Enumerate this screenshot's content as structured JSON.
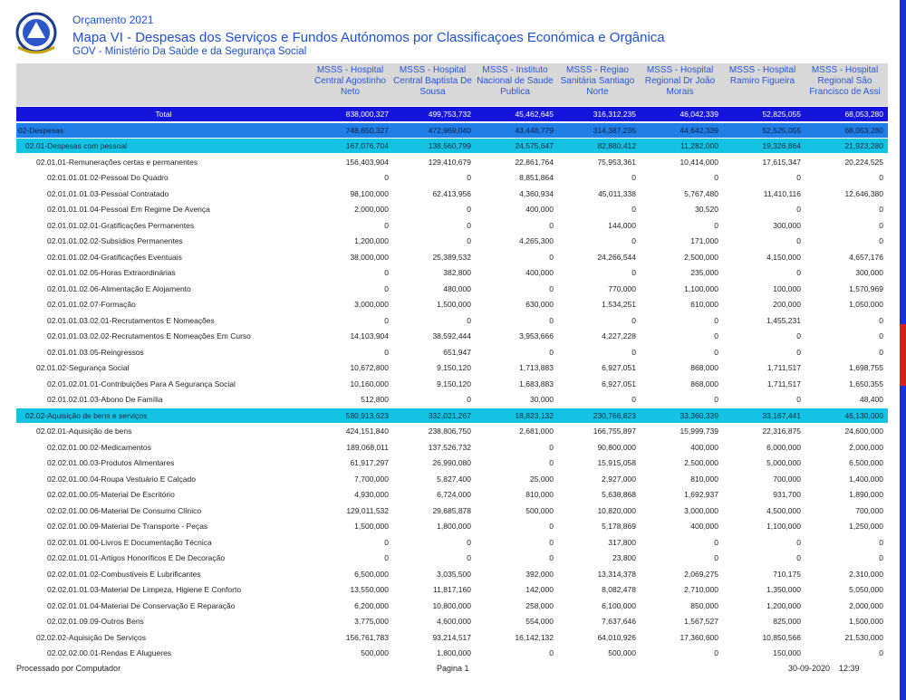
{
  "header": {
    "year": "Orçamento 2021",
    "title": "Mapa VI - Despesas dos Serviços e Fundos Autónomos por Classificaçoes Económica e Orgânica",
    "subtitle": "GOV - Ministério Da Saúde e da Segurança Social"
  },
  "table": {
    "columns": [
      "MSSS - Hospital Central Agostinho Neto",
      "MSSS - Hospital Central Baptista De Sousa",
      "MSSS - Instituto Nacional de Saude Publica",
      "MSSS - Regiao Sanitária Santiago Norte",
      "MSSS - Hospital Regional Dr João Morais",
      "MSSS - Hospital Ramiro Figueira",
      "MSSS - Hospital Regional São Francisco de Assi"
    ],
    "rows": [
      {
        "level": 0,
        "label": "Total",
        "values": [
          "838,000,327",
          "499,753,732",
          "45,462,645",
          "316,312,235",
          "46,042,339",
          "52,825,055",
          "68,053,280"
        ]
      },
      {
        "level": 1,
        "label": "02-Despesas",
        "values": [
          "748,650,327",
          "472,969,040",
          "43,448,779",
          "314,387,235",
          "44,642,339",
          "52,525,055",
          "68,053,280"
        ]
      },
      {
        "level": 2,
        "label": "02.01-Despesas com pessoal",
        "values": [
          "167,076,704",
          "138,560,799",
          "24,575,647",
          "82,880,412",
          "11,282,000",
          "19,326,864",
          "21,923,280"
        ]
      },
      {
        "level": 3,
        "label": "02.01.01-Remunerações certas e permanentes",
        "values": [
          "156,403,904",
          "129,410,679",
          "22,861,764",
          "75,953,361",
          "10,414,000",
          "17,615,347",
          "20,224,525"
        ]
      },
      {
        "level": 4,
        "label": "02.01.01.01.02-Pessoal Do Quadro",
        "values": [
          "0",
          "0",
          "8,851,864",
          "0",
          "0",
          "0",
          "0"
        ]
      },
      {
        "level": 4,
        "label": "02.01.01.01.03-Pessoal Contratado",
        "values": [
          "98,100,000",
          "62,413,956",
          "4,360,934",
          "45,011,338",
          "5,767,480",
          "11,410,116",
          "12,646,380"
        ]
      },
      {
        "level": 4,
        "label": "02.01.01.01.04-Pessoal Em Regime De Avença",
        "values": [
          "2,000,000",
          "0",
          "400,000",
          "0",
          "30,520",
          "0",
          "0"
        ]
      },
      {
        "level": 4,
        "label": "02.01.01.02.01-Gratificações Permanentes",
        "values": [
          "0",
          "0",
          "0",
          "144,000",
          "0",
          "300,000",
          "0"
        ]
      },
      {
        "level": 4,
        "label": "02.01.01.02.02-Subsídios Permanentes",
        "values": [
          "1,200,000",
          "0",
          "4,265,300",
          "0",
          "171,000",
          "0",
          "0"
        ]
      },
      {
        "level": 4,
        "label": "02.01.01.02.04-Gratificações Eventuais",
        "values": [
          "38,000,000",
          "25,389,532",
          "0",
          "24,266,544",
          "2,500,000",
          "4,150,000",
          "4,657,176"
        ]
      },
      {
        "level": 4,
        "label": "02.01.01.02.05-Horas Extraordinárias",
        "values": [
          "0",
          "382,800",
          "400,000",
          "0",
          "235,000",
          "0",
          "300,000"
        ]
      },
      {
        "level": 4,
        "label": "02.01.01.02.06-Alimentação E Alojamento",
        "values": [
          "0",
          "480,000",
          "0",
          "770,000",
          "1,100,000",
          "100,000",
          "1,570,969"
        ]
      },
      {
        "level": 4,
        "label": "02.01.01.02.07-Formação",
        "values": [
          "3,000,000",
          "1,500,000",
          "630,000",
          "1,534,251",
          "610,000",
          "200,000",
          "1,050,000"
        ]
      },
      {
        "level": 4,
        "label": "02.01.01.03.02.01-Recrutamentos E Nomeações",
        "values": [
          "0",
          "0",
          "0",
          "0",
          "0",
          "1,455,231",
          "0"
        ]
      },
      {
        "level": 4,
        "label": "02.01.01.03.02.02-Recrutamentos E Nomeações Em Curso",
        "values": [
          "14,103,904",
          "38,592,444",
          "3,953,666",
          "4,227,228",
          "0",
          "0",
          "0"
        ]
      },
      {
        "level": 4,
        "label": "02.01.01.03.05-Reingressos",
        "values": [
          "0",
          "651,947",
          "0",
          "0",
          "0",
          "0",
          "0"
        ]
      },
      {
        "level": 3,
        "label": "02.01.02-Segurança Social",
        "values": [
          "10,672,800",
          "9,150,120",
          "1,713,883",
          "6,927,051",
          "868,000",
          "1,711,517",
          "1,698,755"
        ]
      },
      {
        "level": 4,
        "label": "02.01.02.01.01-Contribuições Para A Segurança Social",
        "values": [
          "10,160,000",
          "9,150,120",
          "1,683,883",
          "6,927,051",
          "868,000",
          "1,711,517",
          "1,650,355"
        ]
      },
      {
        "level": 4,
        "label": "02.01.02.01.03-Abono De Família",
        "values": [
          "512,800",
          "0",
          "30,000",
          "0",
          "0",
          "0",
          "48,400"
        ]
      },
      {
        "level": 2,
        "label": "02.02-Aquisição de bens e serviços",
        "values": [
          "580,913,623",
          "332,021,267",
          "18,823,132",
          "230,766,823",
          "33,360,339",
          "33,167,441",
          "46,130,000"
        ]
      },
      {
        "level": 3,
        "label": "02.02.01-Aquisição de bens",
        "values": [
          "424,151,840",
          "238,806,750",
          "2,681,000",
          "166,755,897",
          "15,999,739",
          "22,316,875",
          "24,600,000"
        ]
      },
      {
        "level": 4,
        "label": "02.02.01.00.02-Medicamentos",
        "values": [
          "189,068,011",
          "137,526,732",
          "0",
          "90,800,000",
          "400,000",
          "6,000,000",
          "2,000,000"
        ]
      },
      {
        "level": 4,
        "label": "02.02.01.00.03-Produtos Alimentares",
        "values": [
          "61,917,297",
          "26,990,080",
          "0",
          "15,915,058",
          "2,500,000",
          "5,000,000",
          "6,500,000"
        ]
      },
      {
        "level": 4,
        "label": "02.02.01.00.04-Roupa  Vestuário E Calçado",
        "values": [
          "7,700,000",
          "5,827,400",
          "25,000",
          "2,927,000",
          "810,000",
          "700,000",
          "1,400,000"
        ]
      },
      {
        "level": 4,
        "label": "02.02.01.00.05-Material De Escritório",
        "values": [
          "4,930,000",
          "6,724,000",
          "810,000",
          "5,638,868",
          "1,692,937",
          "931,700",
          "1,890,000"
        ]
      },
      {
        "level": 4,
        "label": "02.02.01.00.06-Material De Consumo Clínico",
        "values": [
          "129,011,532",
          "29,685,878",
          "500,000",
          "10,820,000",
          "3,000,000",
          "4,500,000",
          "700,000"
        ]
      },
      {
        "level": 4,
        "label": "02.02.01.00.09-Material De Transporte - Peças",
        "values": [
          "1,500,000",
          "1,800,000",
          "0",
          "5,178,869",
          "400,000",
          "1,100,000",
          "1,250,000"
        ]
      },
      {
        "level": 4,
        "label": "02.02.01.01.00-Livros E Documentação Técnica",
        "values": [
          "0",
          "0",
          "0",
          "317,800",
          "0",
          "0",
          "0"
        ]
      },
      {
        "level": 4,
        "label": "02.02.01.01.01-Artigos Honoríficos E De Decoração",
        "values": [
          "0",
          "0",
          "0",
          "23,800",
          "0",
          "0",
          "0"
        ]
      },
      {
        "level": 4,
        "label": "02.02.01.01.02-Combustíveis E Lubrificantes",
        "values": [
          "6,500,000",
          "3,035,500",
          "392,000",
          "13,314,378",
          "2,069,275",
          "710,175",
          "2,310,000"
        ]
      },
      {
        "level": 4,
        "label": "02.02.01.01.03-Material De Limpeza, Higiene E Conforto",
        "values": [
          "13,550,000",
          "11,817,160",
          "142,000",
          "8,082,478",
          "2,710,000",
          "1,350,000",
          "5,050,000"
        ]
      },
      {
        "level": 4,
        "label": "02.02.01.01.04-Material De Conservação E Reparação",
        "values": [
          "6,200,000",
          "10,800,000",
          "258,000",
          "6,100,000",
          "850,000",
          "1,200,000",
          "2,000,000"
        ]
      },
      {
        "level": 4,
        "label": "02.02.01.09.09-Outros Bens",
        "values": [
          "3,775,000",
          "4,600,000",
          "554,000",
          "7,637,646",
          "1,567,527",
          "825,000",
          "1,500,000"
        ]
      },
      {
        "level": 3,
        "label": "02.02.02-Aquisição De Serviços",
        "values": [
          "156,761,783",
          "93,214,517",
          "16,142,132",
          "64,010,926",
          "17,360,600",
          "10,850,566",
          "21,530,000"
        ]
      },
      {
        "level": 4,
        "label": "02.02.02.00.01-Rendas E Alugueres",
        "values": [
          "500,000",
          "1,800,000",
          "0",
          "500,000",
          "0",
          "150,000",
          "0"
        ]
      }
    ]
  },
  "footer": {
    "left": "Processado por Computador",
    "center": "Pagina 1",
    "date": "30-09-2020",
    "time": "12:39"
  }
}
